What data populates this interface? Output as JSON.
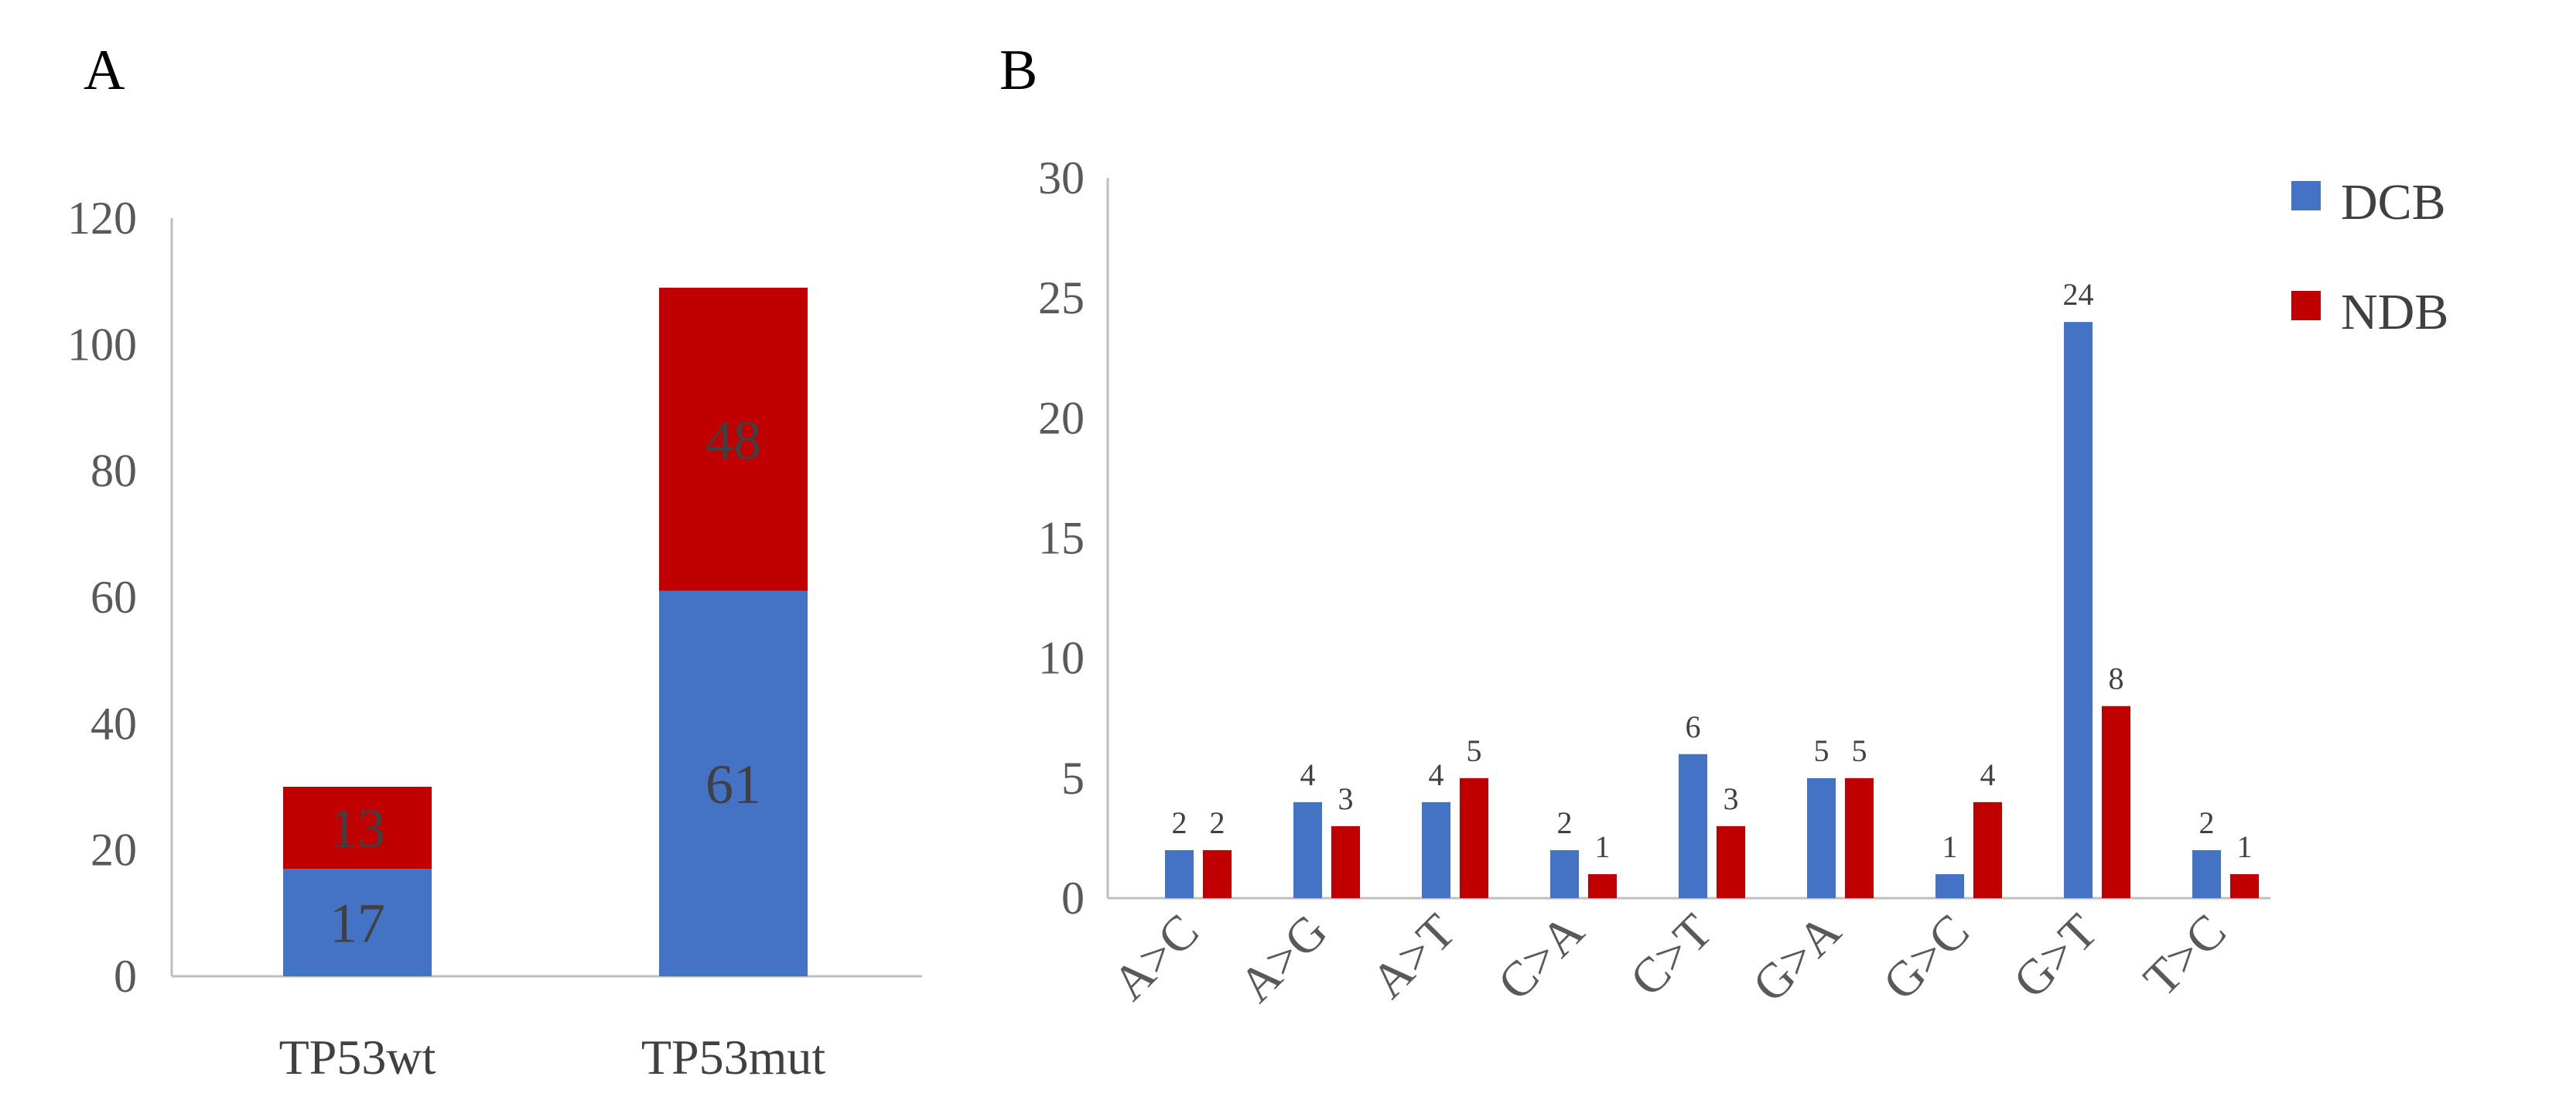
{
  "colors": {
    "series1": "#4472C4",
    "series2": "#C00000",
    "axis": "#BFBFBF"
  },
  "chart_data": [
    {
      "type": "bar",
      "stacked": true,
      "panel_label": "A",
      "title": "",
      "xlabel": "",
      "ylabel": "",
      "categories": [
        "TP53wt",
        "TP53mut"
      ],
      "series": [
        {
          "name": "DCB",
          "values": [
            17,
            61
          ]
        },
        {
          "name": "NDB",
          "values": [
            13,
            48
          ]
        }
      ],
      "ylim": [
        0,
        120
      ],
      "yticks": [
        0,
        20,
        40,
        60,
        80,
        100,
        120
      ],
      "grid": false,
      "legend": "none"
    },
    {
      "type": "bar",
      "stacked": false,
      "panel_label": "B",
      "title": "",
      "xlabel": "",
      "ylabel": "",
      "categories": [
        "A>C",
        "A>G",
        "A>T",
        "C>A",
        "C>T",
        "G>A",
        "G>C",
        "G>T",
        "T>C"
      ],
      "series": [
        {
          "name": "DCB",
          "values": [
            2,
            4,
            4,
            2,
            6,
            5,
            1,
            24,
            2
          ]
        },
        {
          "name": "NDB",
          "values": [
            2,
            3,
            5,
            1,
            3,
            5,
            4,
            8,
            1
          ]
        }
      ],
      "ylim": [
        0,
        30
      ],
      "yticks": [
        0,
        5,
        10,
        15,
        20,
        25,
        30
      ],
      "grid": false,
      "legend": "top-right"
    }
  ]
}
